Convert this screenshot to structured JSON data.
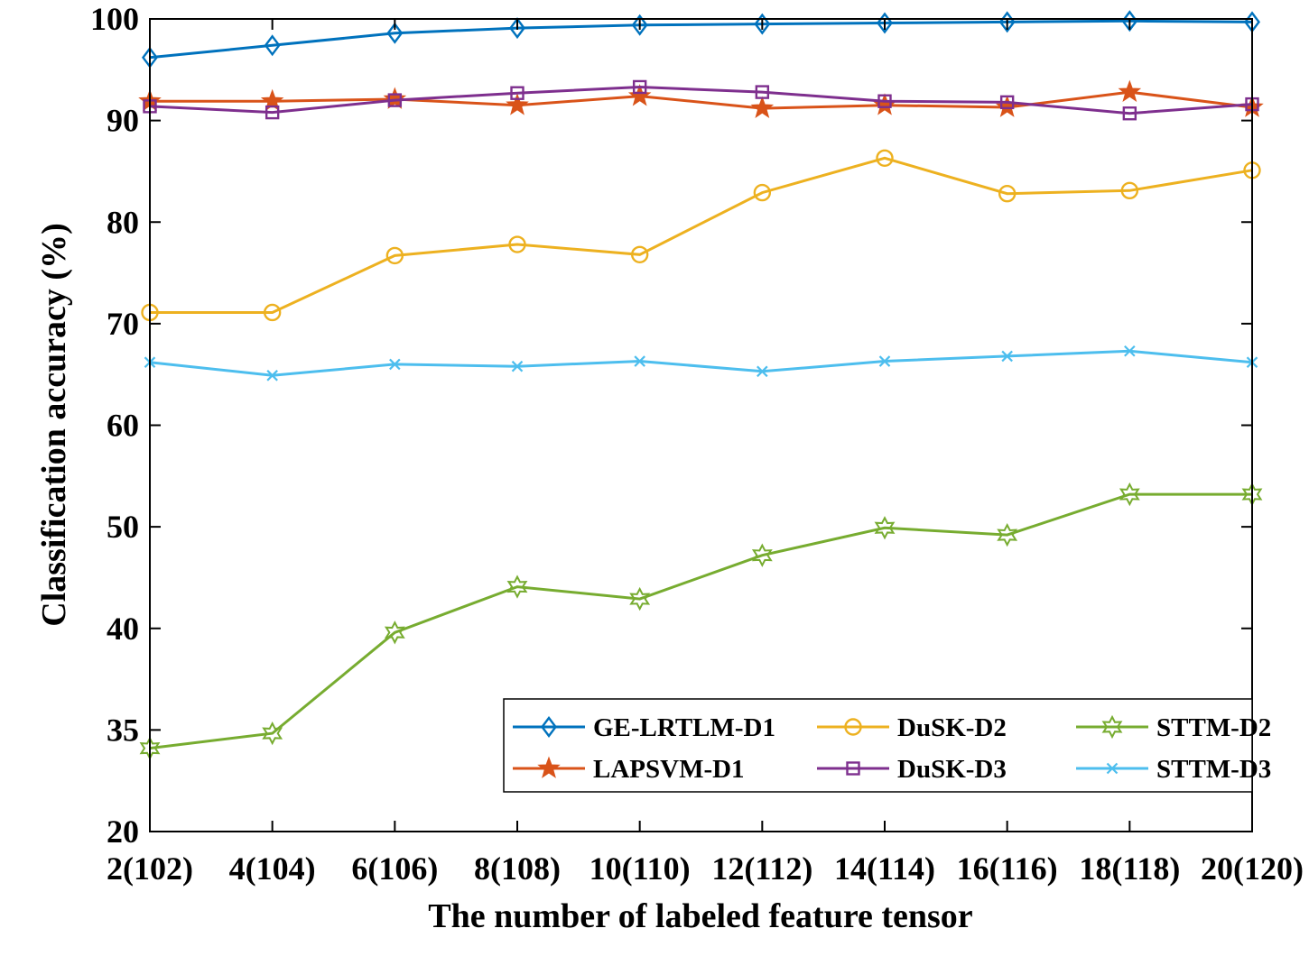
{
  "chart_data": {
    "type": "line",
    "title": "",
    "xlabel": "The number of labeled feature tensor",
    "ylabel": "Classification accuracy (%)",
    "categories": [
      "2(102)",
      "4(104)",
      "6(106)",
      "8(108)",
      "10(110)",
      "12(112)",
      "14(114)",
      "16(116)",
      "18(118)",
      "20(120)"
    ],
    "y_tick_labels": [
      "20",
      "35",
      "40",
      "50",
      "60",
      "70",
      "80",
      "90",
      "100"
    ],
    "grid": false,
    "legend_position": "bottom-right",
    "series": [
      {
        "name": "GE-LRTLM-D1",
        "color": "#0072BD",
        "marker": "diamond",
        "values": [
          96.2,
          97.4,
          98.6,
          99.1,
          99.4,
          99.5,
          99.6,
          99.7,
          99.8,
          99.7
        ]
      },
      {
        "name": "LAPSVM-D1",
        "color": "#D95319",
        "marker": "star",
        "values": [
          91.9,
          91.9,
          92.1,
          91.5,
          92.4,
          91.2,
          91.5,
          91.3,
          92.8,
          91.3
        ]
      },
      {
        "name": "DuSK-D2",
        "color": "#EDB120",
        "marker": "circle",
        "values": [
          71.1,
          71.1,
          76.7,
          77.8,
          76.8,
          82.9,
          86.3,
          82.8,
          83.1,
          85.1
        ]
      },
      {
        "name": "DuSK-D3",
        "color": "#7E2F8E",
        "marker": "square",
        "values": [
          91.4,
          90.8,
          92.0,
          92.7,
          93.3,
          92.8,
          91.9,
          91.8,
          90.7,
          91.6
        ]
      },
      {
        "name": "STTM-D2",
        "color": "#77AC30",
        "marker": "hexagram",
        "values": [
          32.3,
          34.5,
          39.8,
          44.1,
          42.9,
          47.2,
          49.9,
          49.2,
          53.2,
          53.2
        ]
      },
      {
        "name": "STTM-D3",
        "color": "#4DBEEE",
        "marker": "x",
        "values": [
          66.2,
          64.9,
          66.0,
          65.8,
          66.3,
          65.3,
          66.3,
          66.8,
          67.3,
          66.2
        ]
      }
    ]
  }
}
